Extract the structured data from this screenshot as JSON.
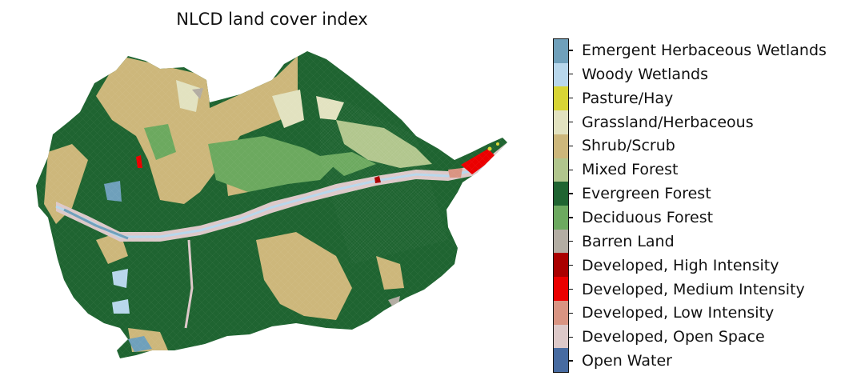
{
  "title": "NLCD land cover index",
  "legend": {
    "classes": [
      {
        "label": "Emergent Herbaceous Wetlands",
        "color": "#6fa0bb"
      },
      {
        "label": "Woody Wetlands",
        "color": "#b8d7ec"
      },
      {
        "label": "Pasture/Hay",
        "color": "#d8d535"
      },
      {
        "label": "Grassland/Herbaceous",
        "color": "#e2e2c0"
      },
      {
        "label": "Shrub/Scrub",
        "color": "#cdb77b"
      },
      {
        "label": "Mixed Forest",
        "color": "#b1c68d"
      },
      {
        "label": "Evergreen Forest",
        "color": "#1f6431"
      },
      {
        "label": "Deciduous Forest",
        "color": "#6ca95f"
      },
      {
        "label": "Barren Land",
        "color": "#b3ada3"
      },
      {
        "label": "Developed, High Intensity",
        "color": "#aa0000"
      },
      {
        "label": "Developed, Medium Intensity",
        "color": "#eb0000"
      },
      {
        "label": "Developed, Low Intensity",
        "color": "#d99482"
      },
      {
        "label": "Developed, Open Space",
        "color": "#ddc9c9"
      },
      {
        "label": "Open Water",
        "color": "#476ba1"
      }
    ]
  }
}
